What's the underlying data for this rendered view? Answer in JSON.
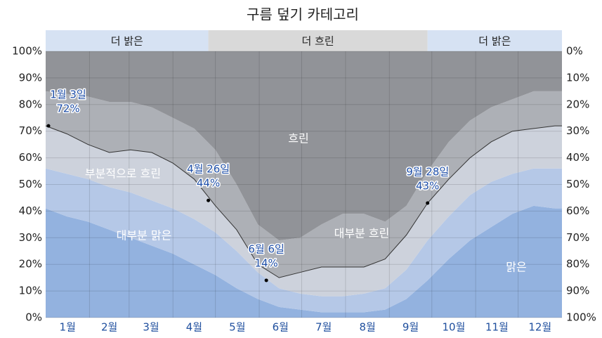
{
  "chart_data": {
    "type": "stacked-area",
    "title": "구름 덮기 카테고리",
    "x": [
      0,
      15,
      30,
      45,
      60,
      75,
      90,
      105,
      120,
      135,
      150,
      165,
      180,
      195,
      210,
      225,
      240,
      255,
      270,
      285,
      300,
      315,
      330,
      345,
      360,
      365
    ],
    "xlim": [
      0,
      365
    ],
    "xticks": [
      {
        "value": 0,
        "label": "1월"
      },
      {
        "value": 31,
        "label": "2월"
      },
      {
        "value": 59,
        "label": "3월"
      },
      {
        "value": 90,
        "label": "4월"
      },
      {
        "value": 120,
        "label": "5월"
      },
      {
        "value": 151,
        "label": "6월"
      },
      {
        "value": 181,
        "label": "7월"
      },
      {
        "value": 212,
        "label": "8월"
      },
      {
        "value": 243,
        "label": "9월"
      },
      {
        "value": 273,
        "label": "10월"
      },
      {
        "value": 304,
        "label": "11월"
      },
      {
        "value": 334,
        "label": "12월"
      }
    ],
    "ylim": [
      0,
      100
    ],
    "yticks": [
      {
        "value": 0,
        "label": "0%"
      },
      {
        "value": 10,
        "label": "10%"
      },
      {
        "value": 20,
        "label": "20%"
      },
      {
        "value": 30,
        "label": "30%"
      },
      {
        "value": 40,
        "label": "40%"
      },
      {
        "value": 50,
        "label": "50%"
      },
      {
        "value": 60,
        "label": "60%"
      },
      {
        "value": 70,
        "label": "70%"
      },
      {
        "value": 80,
        "label": "80%"
      },
      {
        "value": 90,
        "label": "90%"
      },
      {
        "value": 100,
        "label": "100%"
      }
    ],
    "y2lim": [
      100,
      0
    ],
    "y2ticks": [
      {
        "value": 0,
        "label": "0%"
      },
      {
        "value": 10,
        "label": "10%"
      },
      {
        "value": 20,
        "label": "20%"
      },
      {
        "value": 30,
        "label": "30%"
      },
      {
        "value": 40,
        "label": "40%"
      },
      {
        "value": 50,
        "label": "50%"
      },
      {
        "value": 60,
        "label": "60%"
      },
      {
        "value": 70,
        "label": "70%"
      },
      {
        "value": 80,
        "label": "80%"
      },
      {
        "value": 90,
        "label": "90%"
      },
      {
        "value": 100,
        "label": "100%"
      }
    ],
    "grid": true,
    "series": [
      {
        "name": "맑은",
        "color": "#93b2df",
        "values": [
          41,
          38,
          36,
          33,
          30,
          27,
          24,
          20,
          16,
          11,
          7,
          4,
          3,
          2,
          2,
          2,
          3,
          7,
          14,
          22,
          29,
          34,
          39,
          42,
          41,
          41
        ]
      },
      {
        "name": "대부분 맑은",
        "color": "#b5c8e7",
        "values": [
          15,
          16,
          16,
          16,
          17,
          17,
          17,
          17,
          16,
          14,
          10,
          7,
          6,
          6,
          6,
          7,
          8,
          11,
          15,
          16,
          17,
          17,
          15,
          14,
          15,
          15
        ]
      },
      {
        "name": "부분적으로 흐린",
        "color": "#cdd2dc",
        "values": [
          16,
          15,
          13,
          13,
          16,
          18,
          17,
          15,
          10,
          8,
          3,
          4,
          8,
          11,
          11,
          10,
          11,
          13,
          14,
          14,
          14,
          15,
          16,
          15,
          16,
          16
        ]
      },
      {
        "name": "대부분 흐린",
        "color": "#adb0b6",
        "values": [
          13,
          15,
          18,
          19,
          18,
          17,
          17,
          19,
          21,
          17,
          15,
          14,
          13,
          16,
          20,
          20,
          14,
          11,
          12,
          14,
          14,
          13,
          12,
          14,
          13,
          13
        ]
      },
      {
        "name": "흐린",
        "color": "#919398",
        "values": [
          15,
          16,
          17,
          19,
          19,
          21,
          25,
          29,
          37,
          50,
          65,
          71,
          70,
          65,
          61,
          61,
          64,
          58,
          45,
          34,
          26,
          21,
          18,
          15,
          15,
          15
        ]
      }
    ],
    "bands": [
      {
        "label": "더 밝은",
        "start": 0,
        "end": 115,
        "color": "#d6e2f3"
      },
      {
        "label": "더 흐린",
        "start": 115,
        "end": 270,
        "color": "#d9d9d9"
      },
      {
        "label": "더 밝은",
        "start": 270,
        "end": 365,
        "color": "#d6e2f3"
      }
    ],
    "annotations": [
      {
        "text": "1월 3일",
        "x": 2,
        "value": 72,
        "value_label": "72%"
      },
      {
        "text": "4월 26일",
        "x": 115,
        "value": 44,
        "value_label": "44%"
      },
      {
        "text": "6월 6일",
        "x": 156,
        "value": 14,
        "value_label": "14%"
      },
      {
        "text": "9월 28일",
        "x": 270,
        "value": 43,
        "value_label": "43%"
      }
    ]
  }
}
